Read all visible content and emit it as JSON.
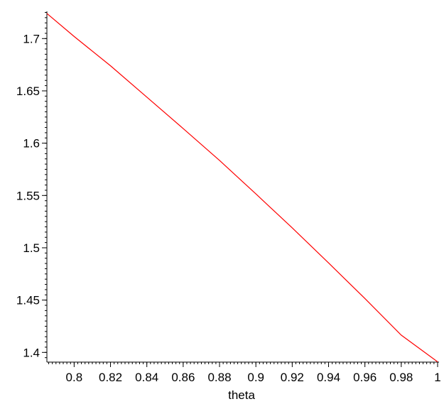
{
  "chart_data": {
    "type": "line",
    "title": "",
    "xlabel": "theta",
    "ylabel": "",
    "xlim": [
      0.785,
      1.0
    ],
    "ylim": [
      1.388,
      1.726
    ],
    "grid": false,
    "x_ticks": [
      "0.8",
      "0.82",
      "0.84",
      "0.86",
      "0.88",
      "0.9",
      "0.92",
      "0.94",
      "0.96",
      "0.98",
      "1"
    ],
    "y_ticks": [
      "1.4",
      "1.45",
      "1.5",
      "1.55",
      "1.6",
      "1.65",
      "1.7"
    ],
    "series": [
      {
        "color": "#ff0000",
        "x": [
          0.785,
          0.8,
          0.82,
          0.84,
          0.86,
          0.88,
          0.9,
          0.92,
          0.94,
          0.96,
          0.98,
          1.0
        ],
        "y": [
          1.724,
          1.702,
          1.674,
          1.644,
          1.614,
          1.5835,
          1.5515,
          1.519,
          1.4855,
          1.4515,
          1.4165,
          1.391
        ]
      }
    ]
  }
}
